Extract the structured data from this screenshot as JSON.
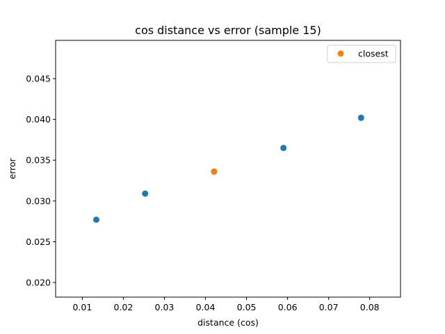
{
  "chart_data": {
    "type": "scatter",
    "title": "cos distance vs error (sample 15)",
    "xlabel": "distance (cos)",
    "ylabel": "error",
    "xlim": [
      0.0035,
      0.0875
    ],
    "ylim": [
      0.0182,
      0.0497
    ],
    "xticks": [
      0.01,
      0.02,
      0.03,
      0.04,
      0.05,
      0.06,
      0.07,
      0.08
    ],
    "xtick_labels": [
      "0.01",
      "0.02",
      "0.03",
      "0.04",
      "0.05",
      "0.06",
      "0.07",
      "0.08"
    ],
    "yticks": [
      0.02,
      0.025,
      0.03,
      0.035,
      0.04,
      0.045
    ],
    "ytick_labels": [
      "0.020",
      "0.025",
      "0.030",
      "0.035",
      "0.040",
      "0.045"
    ],
    "grid": false,
    "legend": {
      "placement": "top-right"
    },
    "series": [
      {
        "color": "#1f77b4",
        "points": [
          {
            "x": 0.0134,
            "y": 0.0277
          },
          {
            "x": 0.0253,
            "y": 0.0309
          },
          {
            "x": 0.0421,
            "y": 0.0336
          },
          {
            "x": 0.059,
            "y": 0.0365
          },
          {
            "x": 0.0779,
            "y": 0.0402
          }
        ]
      },
      {
        "name": "closest",
        "color": "#ff7f0e",
        "points": [
          {
            "x": 0.0421,
            "y": 0.0336
          }
        ]
      }
    ]
  }
}
